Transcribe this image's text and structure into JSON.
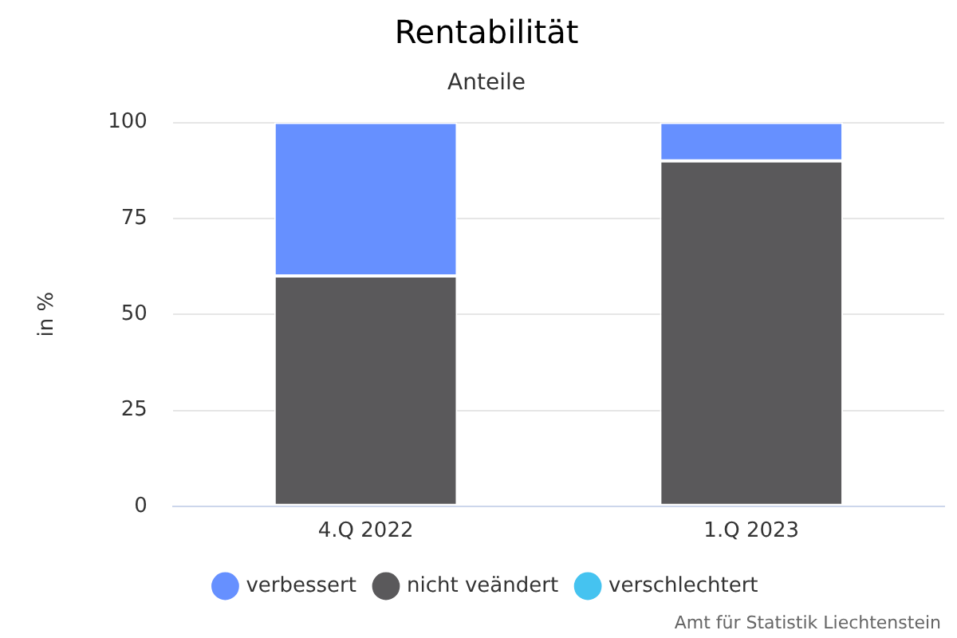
{
  "chart_data": {
    "type": "bar",
    "title": "Rentabilität",
    "subtitle": "Anteile",
    "ylabel": "in %",
    "categories": [
      "4.Q 2022",
      "1.Q 2023"
    ],
    "series": [
      {
        "name": "verschlechtert",
        "color": "#45c3f0",
        "values": [
          0,
          0
        ]
      },
      {
        "name": "nicht veändert",
        "color": "#5a595b",
        "values": [
          60,
          90
        ]
      },
      {
        "name": "verbessert",
        "color": "#6690ff",
        "values": [
          40,
          10
        ]
      }
    ],
    "stacked": true,
    "ylim": [
      0,
      100
    ],
    "yticks": [
      0,
      25,
      50,
      75,
      100
    ],
    "grid": "y",
    "legend": "bottom",
    "annotations": [
      "Amt für Statistik Liechtenstein"
    ]
  }
}
